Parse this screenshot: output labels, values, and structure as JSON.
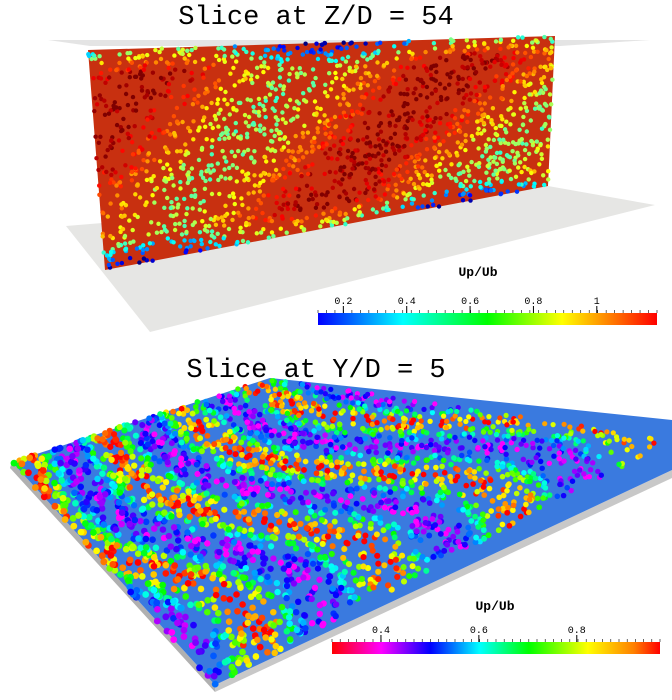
{
  "panels": [
    {
      "title": "Slice at Z/D = 54",
      "colorbar": {
        "title": "Up/Ub",
        "range": [
          0.12,
          1.19
        ],
        "ticks": [
          0.2,
          0.4,
          0.6,
          0.8,
          {
            "value": 1,
            "label": "1"
          }
        ]
      }
    },
    {
      "title": "Slice at Y/D = 5",
      "colorbar": {
        "title": "Up/Ub",
        "range": [
          0.3,
          0.97
        ],
        "ticks": [
          0.4,
          0.6,
          0.8
        ]
      }
    }
  ]
}
